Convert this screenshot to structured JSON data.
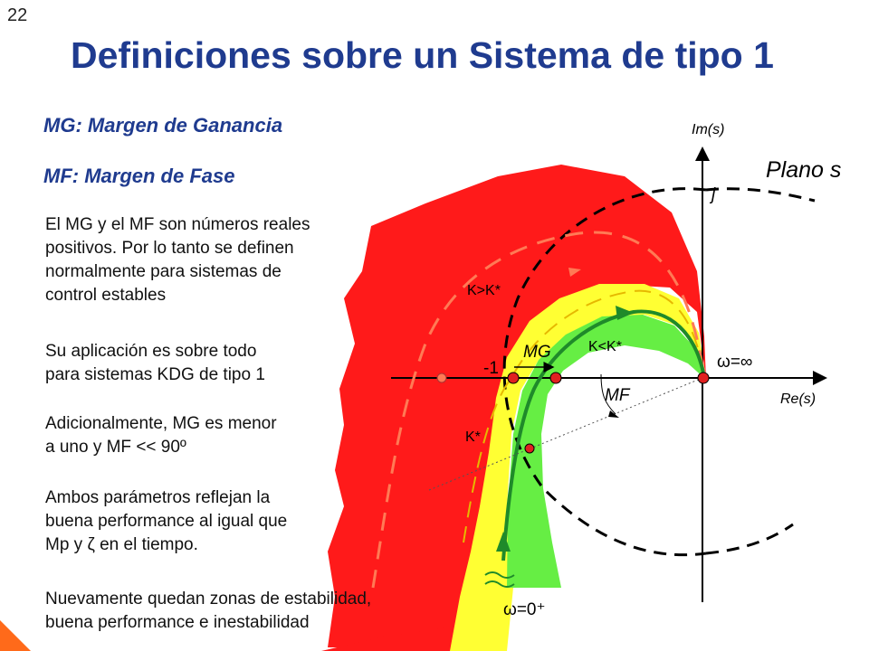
{
  "slide": {
    "number": "22",
    "title": "Definiciones sobre un Sistema de tipo 1"
  },
  "text_panel": {
    "heading_mg": "MG: Margen de Ganancia",
    "heading_mf": "MF: Margen de Fase",
    "paragraph_1": [
      "El MG y el MF son números reales",
      "positivos. Por lo tanto se definen",
      "normalmente para sistemas de",
      "control estables"
    ],
    "paragraph_2": [
      "Su aplicación es sobre todo",
      "para sistemas KDG de tipo 1"
    ],
    "paragraph_3": [
      "Adicionalmente, MG es menor",
      "a uno y MF << 90º"
    ],
    "paragraph_4": [
      "Ambos parámetros reflejan la",
      "buena performance al igual que",
      "Mp y ζ en el tiempo."
    ],
    "paragraph_5": [
      "Nuevamente quedan zonas de estabilidad,",
      "buena performance e inestabilidad"
    ]
  },
  "diagram": {
    "plane_label": "Plano s",
    "imag_axis_label": "Im(s)",
    "real_axis_label": "Re(s)",
    "j_label": "j",
    "minus_one_label": "-1",
    "mg_label": "MG",
    "mf_label": "MF",
    "k_greater_label": "K>K*",
    "k_less_label": "K<K*",
    "k_star_label": "K*",
    "omega_inf_label": "ω=∞",
    "omega_zero_label": "ω=0⁺",
    "colors": {
      "unstable_zone": "#ff1a1a",
      "critical_zone": "#ffff33",
      "stable_zone": "#66ee44",
      "curve_green": "#1f8a2a",
      "curve_red": "#ff7a55",
      "point": "#e02020",
      "title": "#1f3b8f"
    }
  }
}
